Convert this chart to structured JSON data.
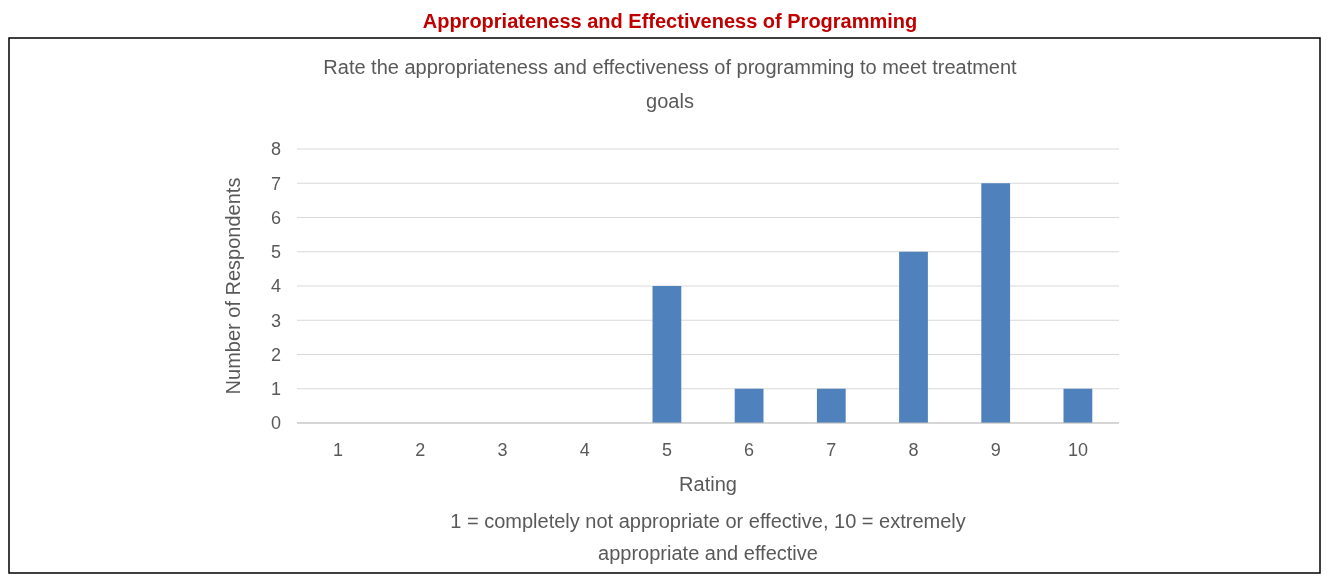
{
  "chart_data": {
    "type": "bar",
    "title": "Appropriateness and Effectiveness of Programming",
    "subtitle": "Rate the appropriateness and effectiveness of programming to meet treatment goals",
    "xlabel": "Rating",
    "ylabel": "Number of Respondents",
    "annotations": [
      "1 = completely not appropriate or effective, 10 = extremely appropriate and effective"
    ],
    "categories": [
      "1",
      "2",
      "3",
      "4",
      "5",
      "6",
      "7",
      "8",
      "9",
      "10"
    ],
    "values": [
      0,
      0,
      0,
      0,
      4,
      1,
      1,
      5,
      7,
      1
    ],
    "color": "#4f81bd",
    "ylim": [
      0,
      8
    ],
    "yticks": [
      0,
      1,
      2,
      3,
      4,
      5,
      6,
      7,
      8
    ],
    "grid": "y"
  }
}
